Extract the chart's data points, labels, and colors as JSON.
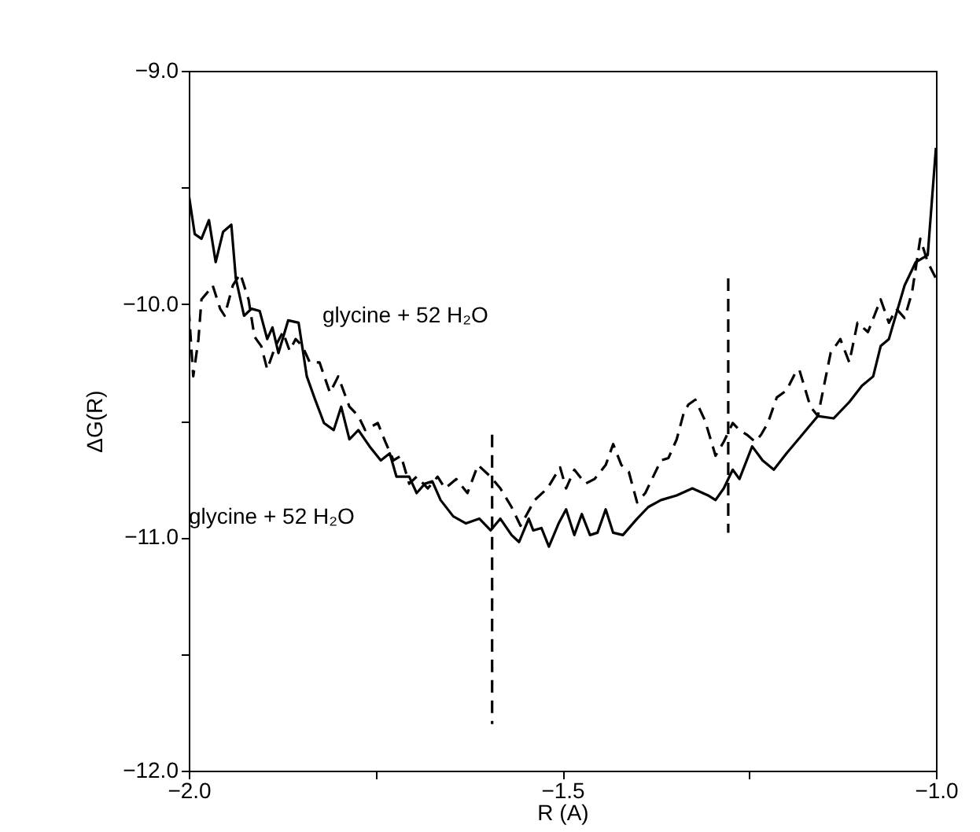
{
  "chart_data": {
    "type": "line",
    "xlabel": "R (A)",
    "ylabel": "ΔG(R)",
    "xlim": [
      -2.0,
      -1.0
    ],
    "ylim": [
      -12.0,
      -9.0
    ],
    "xticks": [
      {
        "value": -2.0,
        "label": "−2.0"
      },
      {
        "value": -1.75,
        "label": null
      },
      {
        "value": -1.5,
        "label": "−1.5"
      },
      {
        "value": -1.25,
        "label": null
      },
      {
        "value": -1.0,
        "label": "−1.0"
      }
    ],
    "yticks": [
      {
        "value": -12.0,
        "label": "−12.0"
      },
      {
        "value": -11.5,
        "label": null
      },
      {
        "value": -11.0,
        "label": "−11.0"
      },
      {
        "value": -10.5,
        "label": null
      },
      {
        "value": -10.0,
        "label": "−10.0"
      },
      {
        "value": -9.5,
        "label": null
      },
      {
        "value": -9.0,
        "label": "−9.0"
      }
    ],
    "grid": false,
    "marker": "none",
    "annotations": [
      "glycine + 52 H₂O",
      "glycine + 52 H₂O"
    ],
    "series": [
      {
        "color": "#000000",
        "line_style": "solid",
        "x": [
          -2.0,
          -1.992,
          -1.983,
          -1.973,
          -1.964,
          -1.954,
          -1.943,
          -1.937,
          -1.926,
          -1.916,
          -1.905,
          -1.895,
          -1.888,
          -1.88,
          -1.867,
          -1.853,
          -1.842,
          -1.832,
          -1.819,
          -1.806,
          -1.796,
          -1.785,
          -1.773,
          -1.758,
          -1.743,
          -1.731,
          -1.722,
          -1.705,
          -1.695,
          -1.684,
          -1.674,
          -1.663,
          -1.646,
          -1.629,
          -1.611,
          -1.596,
          -1.583,
          -1.568,
          -1.558,
          -1.545,
          -1.539,
          -1.528,
          -1.518,
          -1.505,
          -1.495,
          -1.484,
          -1.474,
          -1.463,
          -1.453,
          -1.442,
          -1.432,
          -1.419,
          -1.4,
          -1.385,
          -1.368,
          -1.347,
          -1.326,
          -1.305,
          -1.295,
          -1.284,
          -1.272,
          -1.263,
          -1.246,
          -1.232,
          -1.217,
          -1.2,
          -1.179,
          -1.158,
          -1.137,
          -1.116,
          -1.099,
          -1.084,
          -1.074,
          -1.063,
          -1.042,
          -1.027,
          -1.011,
          -1.0
        ],
        "values": [
          -9.53,
          -9.7,
          -9.72,
          -9.64,
          -9.82,
          -9.69,
          -9.66,
          -9.89,
          -10.05,
          -10.02,
          -10.03,
          -10.15,
          -10.1,
          -10.21,
          -10.07,
          -10.08,
          -10.31,
          -10.4,
          -10.51,
          -10.54,
          -10.44,
          -10.58,
          -10.54,
          -10.61,
          -10.67,
          -10.64,
          -10.74,
          -10.74,
          -10.81,
          -10.77,
          -10.76,
          -10.84,
          -10.91,
          -10.94,
          -10.92,
          -10.97,
          -10.92,
          -10.99,
          -11.02,
          -10.92,
          -10.97,
          -10.96,
          -11.04,
          -10.94,
          -10.88,
          -10.99,
          -10.9,
          -10.99,
          -10.98,
          -10.88,
          -10.98,
          -10.99,
          -10.92,
          -10.87,
          -10.84,
          -10.82,
          -10.79,
          -10.82,
          -10.84,
          -10.79,
          -10.71,
          -10.75,
          -10.61,
          -10.67,
          -10.71,
          -10.64,
          -10.56,
          -10.48,
          -10.49,
          -10.42,
          -10.35,
          -10.31,
          -10.18,
          -10.15,
          -9.92,
          -9.82,
          -9.79,
          -9.33
        ]
      },
      {
        "color": "#000000",
        "line_style": "dashed",
        "x": [
          -2.0,
          -1.994,
          -1.987,
          -1.983,
          -1.975,
          -1.968,
          -1.958,
          -1.952,
          -1.941,
          -1.931,
          -1.92,
          -1.912,
          -1.903,
          -1.895,
          -1.884,
          -1.874,
          -1.865,
          -1.857,
          -1.848,
          -1.838,
          -1.825,
          -1.811,
          -1.8,
          -1.785,
          -1.773,
          -1.764,
          -1.747,
          -1.737,
          -1.726,
          -1.716,
          -1.705,
          -1.695,
          -1.68,
          -1.667,
          -1.657,
          -1.642,
          -1.627,
          -1.613,
          -1.596,
          -1.583,
          -1.568,
          -1.556,
          -1.537,
          -1.52,
          -1.503,
          -1.495,
          -1.484,
          -1.469,
          -1.457,
          -1.442,
          -1.432,
          -1.421,
          -1.411,
          -1.4,
          -1.389,
          -1.368,
          -1.358,
          -1.347,
          -1.337,
          -1.331,
          -1.322,
          -1.309,
          -1.295,
          -1.284,
          -1.272,
          -1.263,
          -1.253,
          -1.242,
          -1.234,
          -1.225,
          -1.213,
          -1.2,
          -1.189,
          -1.183,
          -1.168,
          -1.158,
          -1.141,
          -1.128,
          -1.116,
          -1.105,
          -1.091,
          -1.074,
          -1.063,
          -1.053,
          -1.042,
          -1.032,
          -1.021,
          -1.011,
          -1.0
        ],
        "values": [
          -10.02,
          -10.31,
          -10.15,
          -9.98,
          -9.95,
          -9.92,
          -10.02,
          -10.05,
          -9.92,
          -9.87,
          -9.98,
          -10.14,
          -10.18,
          -10.28,
          -10.18,
          -10.12,
          -10.2,
          -10.15,
          -10.18,
          -10.25,
          -10.25,
          -10.38,
          -10.31,
          -10.44,
          -10.48,
          -10.54,
          -10.51,
          -10.59,
          -10.67,
          -10.65,
          -10.77,
          -10.74,
          -10.79,
          -10.74,
          -10.79,
          -10.75,
          -10.81,
          -10.69,
          -10.74,
          -10.79,
          -10.87,
          -10.95,
          -10.84,
          -10.79,
          -10.7,
          -10.79,
          -10.71,
          -10.77,
          -10.75,
          -10.69,
          -10.6,
          -10.69,
          -10.72,
          -10.85,
          -10.81,
          -10.67,
          -10.66,
          -10.58,
          -10.46,
          -10.43,
          -10.41,
          -10.5,
          -10.65,
          -10.59,
          -10.51,
          -10.54,
          -10.56,
          -10.59,
          -10.56,
          -10.51,
          -10.4,
          -10.37,
          -10.3,
          -10.28,
          -10.44,
          -10.48,
          -10.21,
          -10.15,
          -10.25,
          -10.08,
          -10.12,
          -9.98,
          -10.08,
          -10.02,
          -10.06,
          -9.95,
          -9.72,
          -9.82,
          -9.89
        ]
      },
      {
        "type": "line",
        "color": "#000000",
        "line_style": "dashed",
        "x": [
          -1.594,
          -1.594
        ],
        "values": [
          -10.56,
          -11.8
        ]
      },
      {
        "type": "line",
        "color": "#000000",
        "line_style": "dashed",
        "x": [
          -1.278,
          -1.278
        ],
        "values": [
          -9.89,
          -10.98
        ]
      }
    ]
  }
}
